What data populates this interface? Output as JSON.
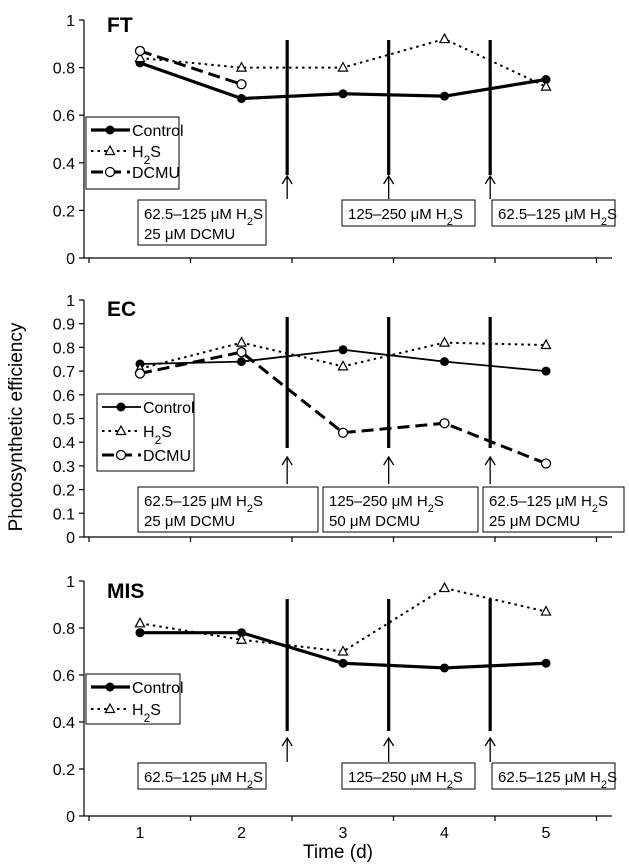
{
  "figure": {
    "y_label": "Photosynthetic efficiency",
    "x_label": "Time (d)",
    "x_ticks": [
      "1",
      "2",
      "3",
      "4",
      "5"
    ]
  },
  "chart_data": [
    {
      "type": "line",
      "title": "FT",
      "x": [
        1,
        2,
        3,
        4,
        5
      ],
      "ylim": [
        0,
        1
      ],
      "y_ticks": [
        "0",
        "0.2",
        "0.4",
        "0.6",
        "0.8",
        "1"
      ],
      "series": [
        {
          "name": "Control",
          "values": [
            0.82,
            0.67,
            0.69,
            0.68,
            0.75
          ]
        },
        {
          "name": "H2S",
          "values": [
            0.84,
            0.8,
            0.8,
            0.92,
            0.72
          ]
        },
        {
          "name": "DCMU",
          "values": [
            0.87,
            0.73,
            null,
            null,
            null
          ]
        }
      ],
      "legend": {
        "position": "left",
        "entries": [
          {
            "name": "Control",
            "parts": [
              {
                "t": "Control"
              }
            ]
          },
          {
            "name": "H2S",
            "parts": [
              {
                "t": "H"
              },
              {
                "t": "2",
                "sub": true
              },
              {
                "t": "S"
              }
            ]
          },
          {
            "name": "DCMU",
            "parts": [
              {
                "t": "DCMU"
              }
            ]
          }
        ]
      },
      "treatments": [
        {
          "day": 2.45,
          "lines": [
            [
              {
                "t": "62.5–125 μM H"
              },
              {
                "t": "2",
                "sub": true
              },
              {
                "t": "S"
              }
            ],
            [
              {
                "t": "25 μM DCMU"
              }
            ]
          ]
        },
        {
          "day": 3.45,
          "lines": [
            [
              {
                "t": "125–250 μM H"
              },
              {
                "t": "2",
                "sub": true
              },
              {
                "t": "S"
              }
            ]
          ]
        },
        {
          "day": 4.45,
          "lines": [
            [
              {
                "t": "62.5–125 μM H"
              },
              {
                "t": "2",
                "sub": true
              },
              {
                "t": "S"
              }
            ]
          ]
        }
      ]
    },
    {
      "type": "line",
      "title": "EC",
      "x": [
        1,
        2,
        3,
        4,
        5
      ],
      "ylim": [
        0,
        1
      ],
      "y_ticks": [
        "0",
        "0.1",
        "0.2",
        "0.3",
        "0.4",
        "0.5",
        "0.6",
        "0.7",
        "0.8",
        "0.9",
        "1"
      ],
      "series": [
        {
          "name": "Control",
          "values": [
            0.73,
            0.74,
            0.79,
            0.74,
            0.7
          ]
        },
        {
          "name": "H2S",
          "values": [
            0.71,
            0.82,
            0.72,
            0.82,
            0.81
          ]
        },
        {
          "name": "DCMU",
          "values": [
            0.69,
            0.78,
            0.44,
            0.48,
            0.31
          ]
        }
      ],
      "legend": {
        "position": "left",
        "entries": [
          {
            "name": "Control",
            "parts": [
              {
                "t": "Control"
              }
            ]
          },
          {
            "name": "H2S",
            "parts": [
              {
                "t": "H"
              },
              {
                "t": "2",
                "sub": true
              },
              {
                "t": "S"
              }
            ]
          },
          {
            "name": "DCMU",
            "parts": [
              {
                "t": "DCMU"
              }
            ]
          }
        ]
      },
      "treatments": [
        {
          "day": 2.45,
          "lines": [
            [
              {
                "t": "62.5–125 μM H"
              },
              {
                "t": "2",
                "sub": true
              },
              {
                "t": "S"
              }
            ],
            [
              {
                "t": "25 μM DCMU"
              }
            ]
          ]
        },
        {
          "day": 3.45,
          "lines": [
            [
              {
                "t": "125–250 μM H"
              },
              {
                "t": "2",
                "sub": true
              },
              {
                "t": "S"
              }
            ],
            [
              {
                "t": "50 μM DCMU"
              }
            ]
          ]
        },
        {
          "day": 4.45,
          "lines": [
            [
              {
                "t": "62.5–125 μM H"
              },
              {
                "t": "2",
                "sub": true
              },
              {
                "t": "S"
              }
            ],
            [
              {
                "t": "25 μM DCMU"
              }
            ]
          ]
        }
      ]
    },
    {
      "type": "line",
      "title": "MIS",
      "x": [
        1,
        2,
        3,
        4,
        5
      ],
      "ylim": [
        0,
        1
      ],
      "y_ticks": [
        "0",
        "0.2",
        "0.4",
        "0.6",
        "0.8",
        "1"
      ],
      "series": [
        {
          "name": "Control",
          "values": [
            0.78,
            0.78,
            0.65,
            0.63,
            0.65
          ]
        },
        {
          "name": "H2S",
          "values": [
            0.82,
            0.75,
            0.7,
            0.97,
            0.87
          ]
        }
      ],
      "legend": {
        "position": "left",
        "entries": [
          {
            "name": "Control",
            "parts": [
              {
                "t": "Control"
              }
            ]
          },
          {
            "name": "H2S",
            "parts": [
              {
                "t": "H"
              },
              {
                "t": "2",
                "sub": true
              },
              {
                "t": "S"
              }
            ]
          }
        ]
      },
      "treatments": [
        {
          "day": 2.45,
          "lines": [
            [
              {
                "t": "62.5–125 μM H"
              },
              {
                "t": "2",
                "sub": true
              },
              {
                "t": "S"
              }
            ]
          ]
        },
        {
          "day": 3.45,
          "lines": [
            [
              {
                "t": "125–250 μM H"
              },
              {
                "t": "2",
                "sub": true
              },
              {
                "t": "S"
              }
            ]
          ]
        },
        {
          "day": 4.45,
          "lines": [
            [
              {
                "t": "62.5–125 μM H"
              },
              {
                "t": "2",
                "sub": true
              },
              {
                "t": "S"
              }
            ]
          ]
        }
      ]
    }
  ]
}
